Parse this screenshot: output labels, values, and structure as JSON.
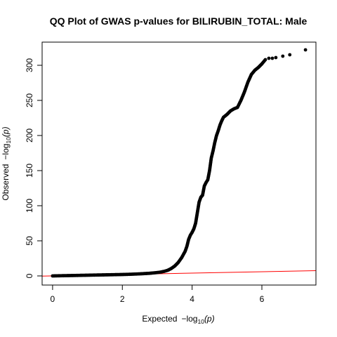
{
  "chart_data": {
    "type": "scatter",
    "title": "QQ Plot of GWAS p-values for BILIRUBIN_TOTAL: Male",
    "xlabel": "Expected",
    "ylabel": "Observed",
    "axis_expr_prefix": "−log",
    "axis_expr_base": "10",
    "axis_expr_arg": "(p)",
    "xlim": [
      -0.3,
      7.55
    ],
    "ylim": [
      -13,
      333
    ],
    "xticks": [
      0,
      2,
      4,
      6
    ],
    "yticks": [
      0,
      50,
      100,
      150,
      200,
      250,
      300
    ],
    "point_color": "#000000",
    "reference_line": {
      "color": "#ff0000",
      "slope": 1,
      "intercept": 0
    },
    "series": [
      {
        "x": [
          0.0,
          0.2,
          0.4,
          0.6,
          0.8,
          1.0,
          1.2,
          1.4,
          1.6,
          1.8,
          2.0,
          2.2,
          2.4,
          2.6,
          2.8,
          3.0,
          3.1,
          3.2,
          3.3,
          3.4,
          3.5,
          3.6,
          3.7,
          3.8,
          3.85,
          3.9,
          3.95,
          4.0,
          4.05,
          4.1,
          4.15,
          4.2,
          4.25,
          4.3,
          4.35,
          4.4,
          4.45,
          4.5,
          4.55,
          4.6,
          4.65,
          4.7,
          4.75,
          4.8,
          4.85,
          4.9,
          4.95,
          5.0,
          5.1,
          5.2,
          5.3,
          5.4,
          5.5,
          5.6,
          5.7,
          5.8,
          5.9,
          6.0,
          6.1,
          6.2,
          6.3,
          6.4,
          6.6,
          6.8,
          7.25
        ],
        "y": [
          0.0,
          0.2,
          0.4,
          0.6,
          0.8,
          1.0,
          1.2,
          1.4,
          1.6,
          1.8,
          2.0,
          2.3,
          2.7,
          3.2,
          3.8,
          4.8,
          5.5,
          6.5,
          8.0,
          10.5,
          14.0,
          19.0,
          26.0,
          35.0,
          42.0,
          52.0,
          58.0,
          62.0,
          67.0,
          75.0,
          90.0,
          105.0,
          112.0,
          115.0,
          128.0,
          133.0,
          137.0,
          150.0,
          168.0,
          178.0,
          190.0,
          200.0,
          207.0,
          215.0,
          221.0,
          226.0,
          228.0,
          230.0,
          235.0,
          238.0,
          240.0,
          250.0,
          262.0,
          276.0,
          287.0,
          293.0,
          297.0,
          302.0,
          308.0,
          310.0,
          310.0,
          311.0,
          313.0,
          315.0,
          322.0
        ]
      }
    ]
  }
}
